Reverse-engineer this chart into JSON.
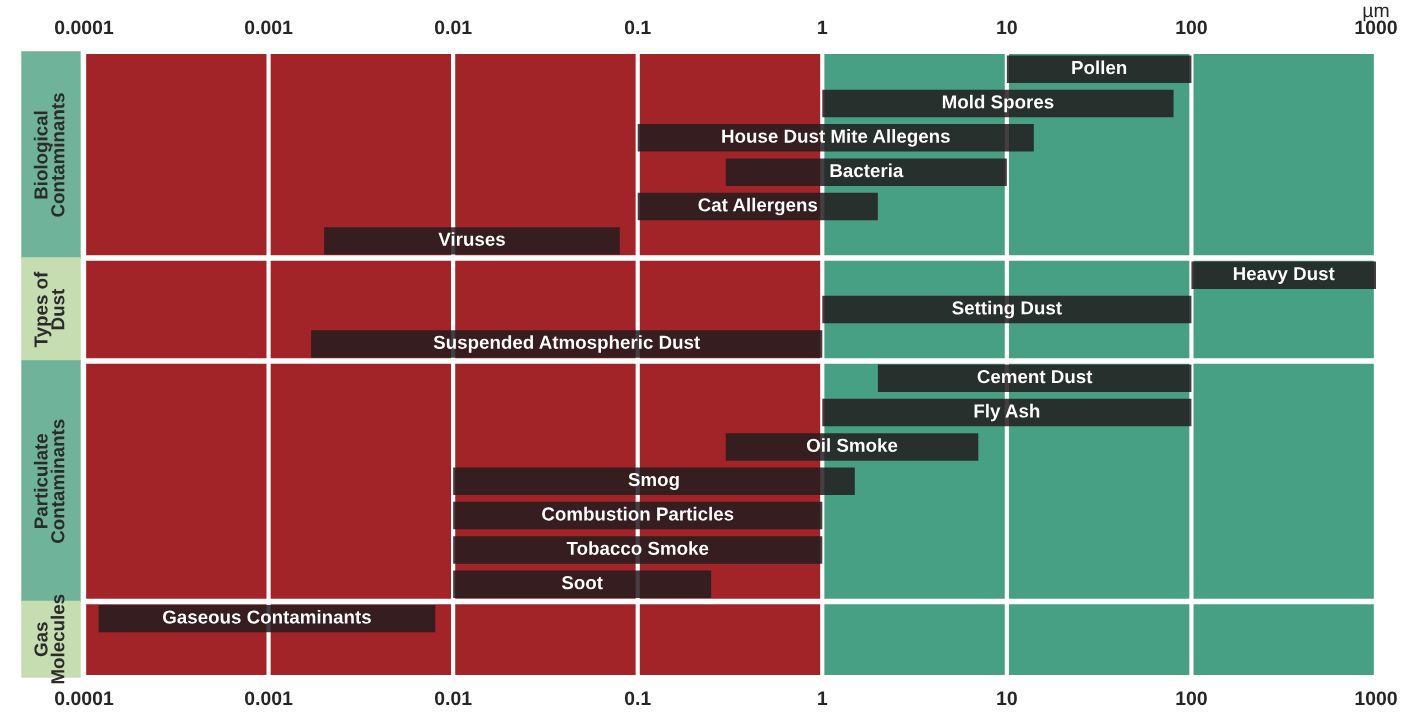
{
  "chart_data": {
    "type": "bar",
    "orientation": "horizontal",
    "log": "x",
    "categories": [
      "Pollen",
      "Mold Spores",
      "House Dust Mite Allegens",
      "Bacteria",
      "Cat Allergens",
      "Viruses",
      "Heavy Dust",
      "Setting Dust",
      "Suspended Atmospheric Dust",
      "Cement Dust",
      "Fly Ash",
      "Oil Smoke",
      "Smog",
      "Combustion Particles",
      "Tobacco Smoke",
      "Soot",
      "Gaseous Contaminants"
    ],
    "series": [
      {
        "color": "#231c1e",
        "base": [
          10,
          1,
          0.1,
          0.3,
          0.1,
          0.002,
          100,
          1,
          0.0017,
          2,
          1,
          0.3,
          0.01,
          0.01,
          0.01,
          0.01,
          0.00012
        ],
        "values": [
          90,
          79,
          13.9,
          9.7,
          1.9,
          0.078,
          900,
          99,
          0.9983,
          98,
          99,
          6.7,
          1.49,
          0.99,
          0.99,
          0.24,
          0.00788
        ]
      }
    ],
    "xlim": [
      0.0001,
      1000
    ],
    "xticks": [
      {
        "value": 0.0001,
        "label": "0.0001"
      },
      {
        "value": 0.001,
        "label": "0.001"
      },
      {
        "value": 0.01,
        "label": "0.01"
      },
      {
        "value": 0.1,
        "label": "0.1"
      },
      {
        "value": 1,
        "label": "1"
      },
      {
        "value": 10,
        "label": "10"
      },
      {
        "value": 100,
        "label": "100"
      },
      {
        "value": 1000,
        "label": "1000"
      }
    ],
    "xlabel": "µm",
    "tick_labels": "x",
    "grid": "x",
    "bands": [
      {
        "axis": "x",
        "from": 0.0001,
        "to": 1,
        "color": "#a32428"
      },
      {
        "axis": "x",
        "from": 1,
        "to": 1000,
        "color": "#48a084"
      }
    ],
    "annotations": [
      "Biological Contaminants",
      "Types of Dust",
      "Particulate Contaminants",
      "Gas Molecules"
    ]
  }
}
